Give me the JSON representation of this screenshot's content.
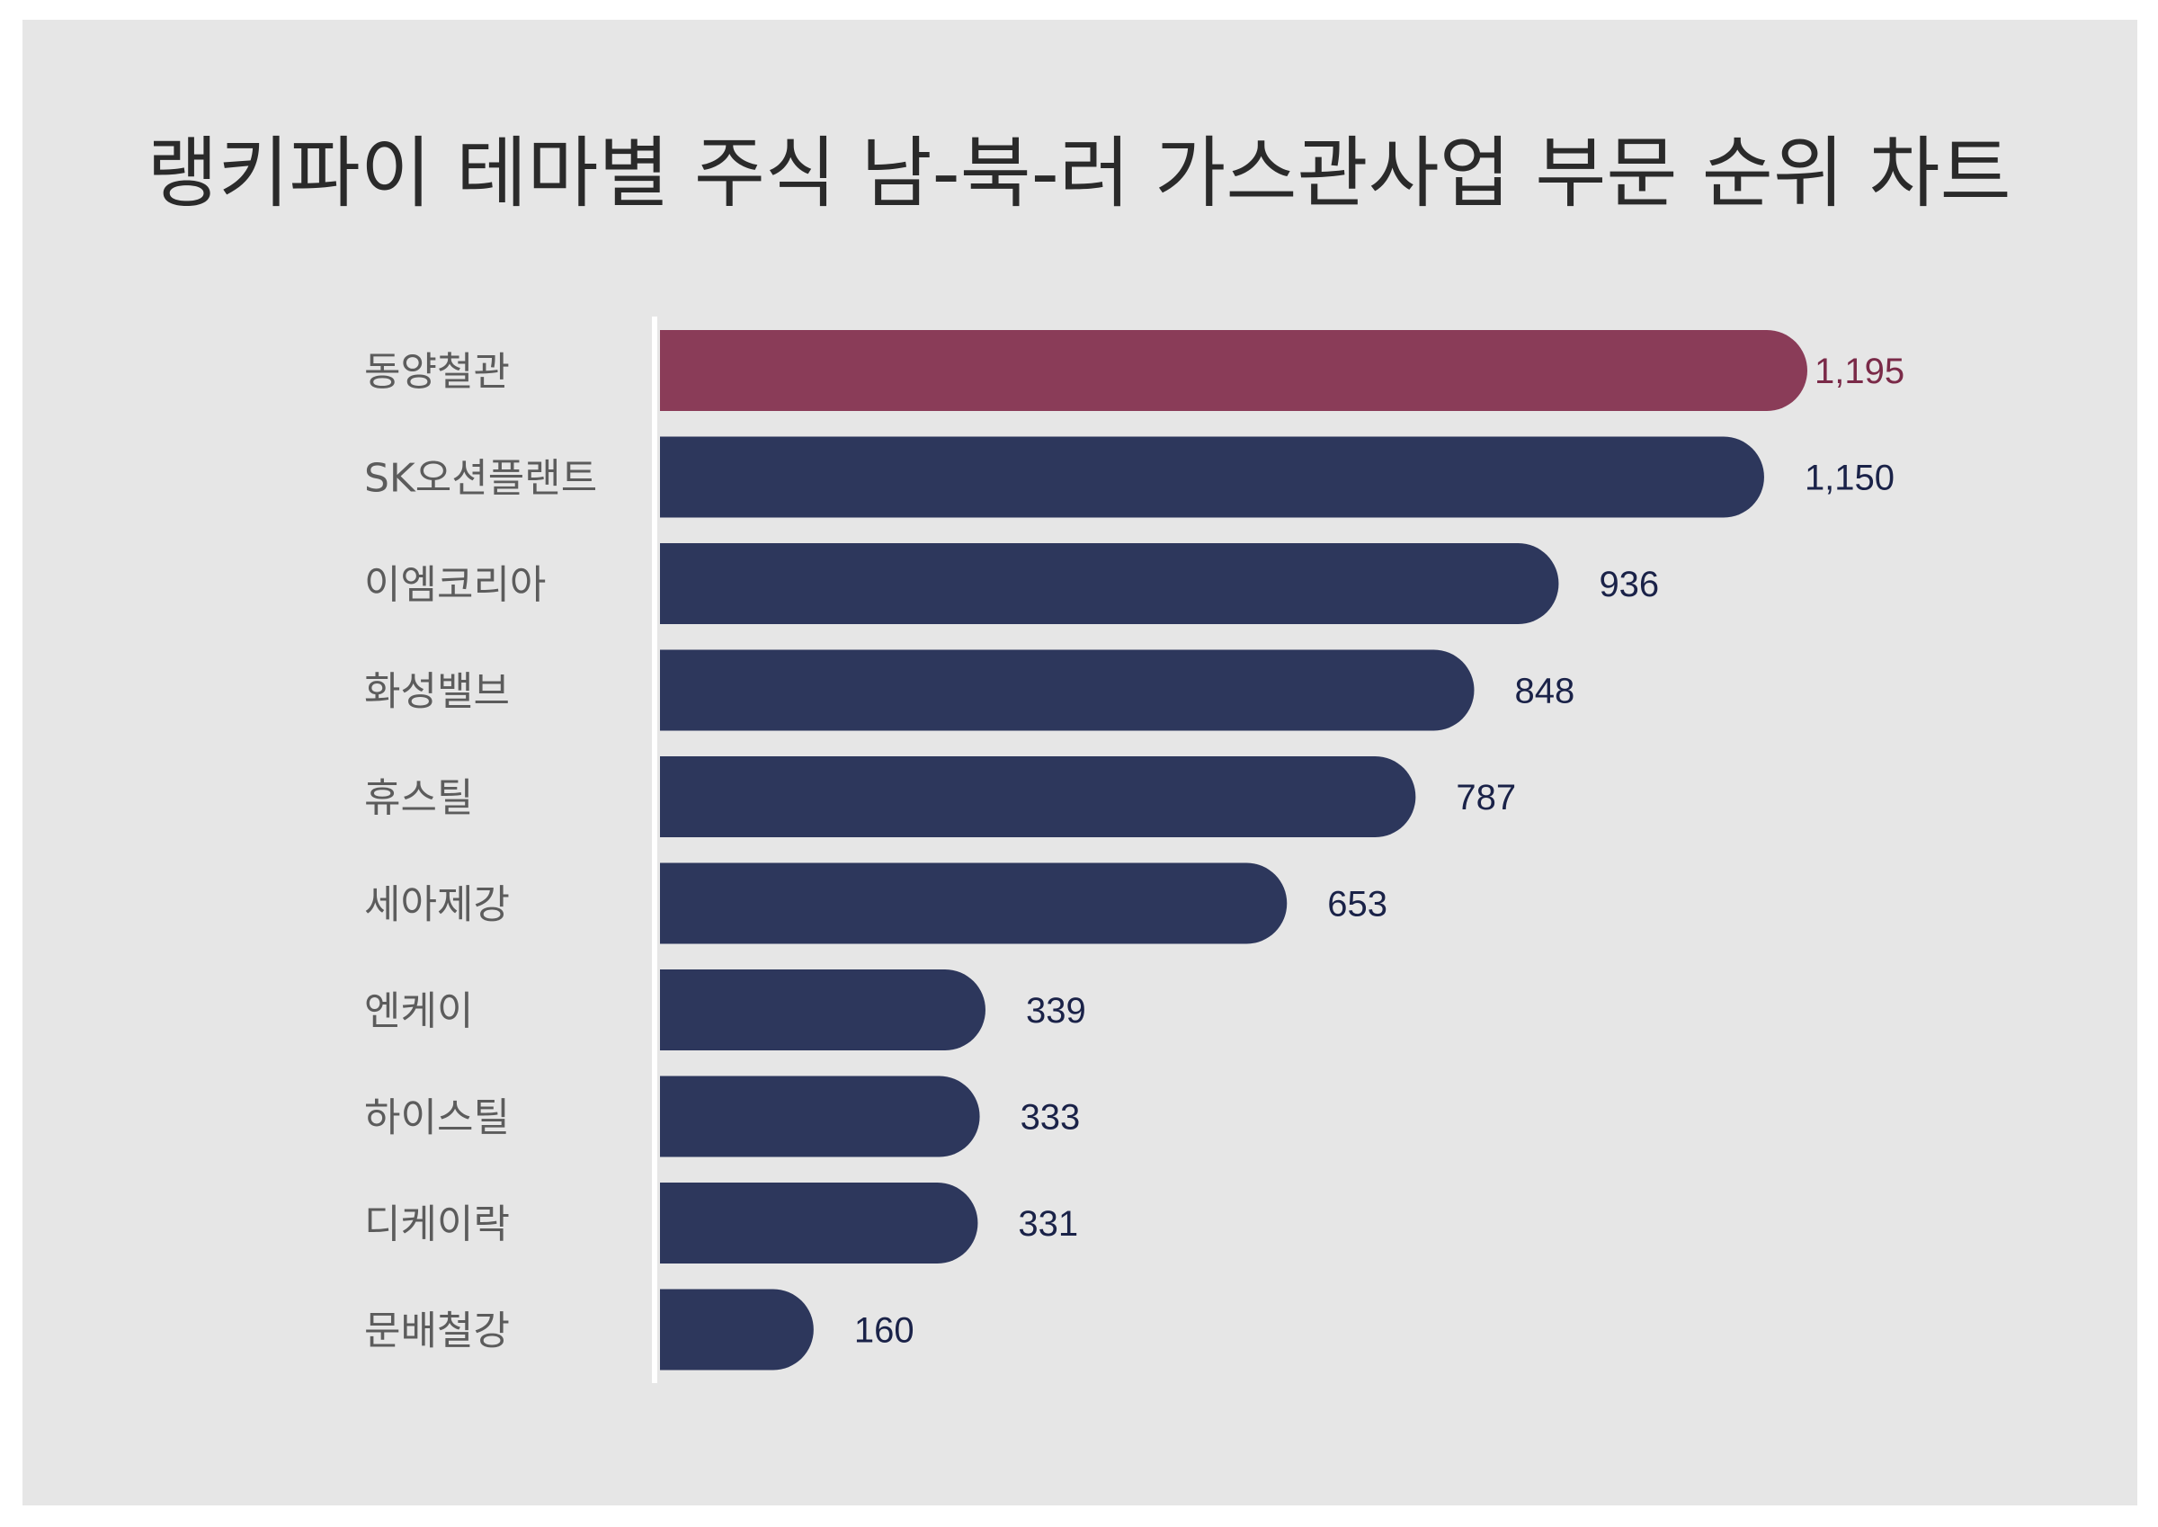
{
  "chart_data": {
    "type": "bar",
    "orientation": "horizontal",
    "title": "랭키파이 테마별 주식 남-북-러 가스관사업 부문 순위 차트",
    "categories": [
      "동양철관",
      "SK오션플랜트",
      "이엠코리아",
      "화성밸브",
      "휴스틸",
      "세아제강",
      "엔케이",
      "하이스틸",
      "디케이락",
      "문배철강"
    ],
    "values": [
      1195,
      1150,
      936,
      848,
      787,
      653,
      339,
      333,
      331,
      160
    ],
    "value_labels": [
      "1,195",
      "1,150",
      "936",
      "848",
      "787",
      "653",
      "339",
      "333",
      "331",
      "160"
    ],
    "highlight_index": 0,
    "grid": false,
    "legend": "none"
  },
  "colors": {
    "background": "#e6e6e6",
    "bar": "#2d375c",
    "bar_highlight": "#8a3c58",
    "value_text": "#1a2248",
    "value_text_highlight": "#7a2a48",
    "axis": "#ffffff"
  }
}
